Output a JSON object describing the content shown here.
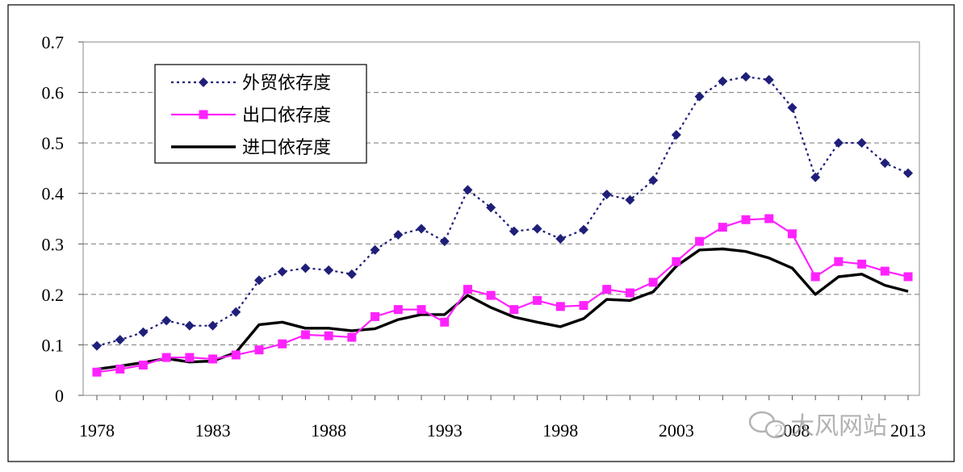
{
  "chart_data": {
    "type": "line",
    "x": [
      1978,
      1979,
      1980,
      1981,
      1982,
      1983,
      1984,
      1985,
      1986,
      1987,
      1988,
      1989,
      1990,
      1991,
      1992,
      1993,
      1994,
      1995,
      1996,
      1997,
      1998,
      1999,
      2000,
      2001,
      2002,
      2003,
      2004,
      2005,
      2006,
      2007,
      2008,
      2009,
      2010,
      2011,
      2012,
      2013
    ],
    "x_tick_labels": [
      "1978",
      "1983",
      "1988",
      "1993",
      "1998",
      "2003",
      "2008",
      "2013"
    ],
    "x_tick_values": [
      1978,
      1983,
      1988,
      1993,
      1998,
      2003,
      2008,
      2013
    ],
    "y_tick_labels": [
      "0",
      "0.1",
      "0.2",
      "0.3",
      "0.4",
      "0.5",
      "0.6",
      "0.7"
    ],
    "ylim": [
      0,
      0.7
    ],
    "grid": "horizontal dashed",
    "legend_position": "top-left",
    "series": [
      {
        "name": "外贸依存度",
        "color": "#1f1f7a",
        "line_style": "dotted",
        "marker": "diamond",
        "values": [
          0.098,
          0.11,
          0.125,
          0.148,
          0.138,
          0.138,
          0.165,
          0.228,
          0.245,
          0.252,
          0.248,
          0.24,
          0.288,
          0.318,
          0.33,
          0.305,
          0.407,
          0.372,
          0.325,
          0.33,
          0.31,
          0.328,
          0.398,
          0.387,
          0.426,
          0.516,
          0.592,
          0.622,
          0.631,
          0.625,
          0.57,
          0.432,
          0.5,
          0.5,
          0.46,
          0.44
        ]
      },
      {
        "name": "出口依存度",
        "color": "#ff22ff",
        "line_style": "solid",
        "marker": "square",
        "values": [
          0.046,
          0.052,
          0.06,
          0.075,
          0.075,
          0.072,
          0.08,
          0.09,
          0.102,
          0.12,
          0.118,
          0.115,
          0.156,
          0.17,
          0.17,
          0.145,
          0.21,
          0.198,
          0.17,
          0.188,
          0.176,
          0.178,
          0.21,
          0.203,
          0.224,
          0.265,
          0.305,
          0.333,
          0.348,
          0.35,
          0.32,
          0.235,
          0.265,
          0.26,
          0.246,
          0.235
        ]
      },
      {
        "name": "进口依存度",
        "color": "#000000",
        "line_style": "solid",
        "marker": "none",
        "values": [
          0.052,
          0.058,
          0.065,
          0.073,
          0.066,
          0.068,
          0.085,
          0.14,
          0.145,
          0.133,
          0.133,
          0.128,
          0.132,
          0.15,
          0.16,
          0.16,
          0.198,
          0.174,
          0.155,
          0.145,
          0.136,
          0.152,
          0.19,
          0.188,
          0.205,
          0.256,
          0.288,
          0.29,
          0.285,
          0.272,
          0.252,
          0.2,
          0.235,
          0.24,
          0.218,
          0.206
        ]
      }
    ]
  },
  "watermark": {
    "text": "大风网站",
    "icon": "wechat-icon"
  }
}
